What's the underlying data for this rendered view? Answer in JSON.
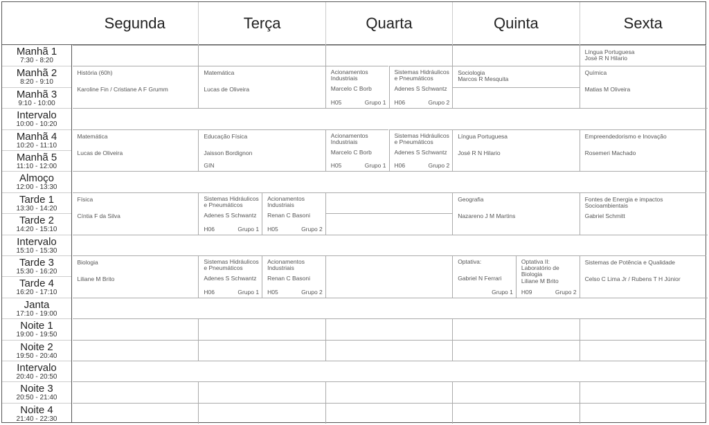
{
  "days": [
    "Segunda",
    "Terça",
    "Quarta",
    "Quinta",
    "Sexta"
  ],
  "slots": [
    {
      "name": "Manhã 1",
      "time": "7:30 - 8:20"
    },
    {
      "name": "Manhã 2",
      "time": "8:20 - 9:10"
    },
    {
      "name": "Manhã 3",
      "time": "9:10 - 10:00"
    },
    {
      "name": "Intervalo",
      "time": "10:00 - 10:20"
    },
    {
      "name": "Manhã 4",
      "time": "10:20 - 11:10"
    },
    {
      "name": "Manhã 5",
      "time": "11:10 - 12:00"
    },
    {
      "name": "Almoço",
      "time": "12:00 - 13:30"
    },
    {
      "name": "Tarde 1",
      "time": "13:30 - 14:20"
    },
    {
      "name": "Tarde 2",
      "time": "14:20 - 15:10"
    },
    {
      "name": "Intervalo",
      "time": "15:10 - 15:30"
    },
    {
      "name": "Tarde 3",
      "time": "15:30 - 16:20"
    },
    {
      "name": "Tarde 4",
      "time": "16:20 - 17:10"
    },
    {
      "name": "Janta",
      "time": "17:10 - 19:00"
    },
    {
      "name": "Noite 1",
      "time": "19:00 - 19:50"
    },
    {
      "name": "Noite 2",
      "time": "19:50 - 20:40"
    },
    {
      "name": "Intervalo",
      "time": "20:40 - 20:50"
    },
    {
      "name": "Noite 3",
      "time": "20:50 - 21:40"
    },
    {
      "name": "Noite 4",
      "time": "21:40 - 22:30"
    }
  ],
  "breaks": [
    3,
    6,
    9,
    12,
    15
  ],
  "classes": [
    {
      "day": 0,
      "row": 0,
      "span": 1
    },
    {
      "day": 1,
      "row": 0,
      "span": 1
    },
    {
      "day": 2,
      "row": 0,
      "span": 1
    },
    {
      "day": 3,
      "row": 0,
      "span": 1
    },
    {
      "day": 4,
      "row": 0,
      "span": 1,
      "style": "compact",
      "subject": "Língua Portuguesa",
      "teacher": "José R N Hilario"
    },
    {
      "day": 0,
      "row": 1,
      "span": 2,
      "subject": "História (60h)",
      "teacher": "Karoline Fin / Cristiane A F Grumm"
    },
    {
      "day": 1,
      "row": 1,
      "span": 2,
      "subject": "Matemática",
      "teacher": "Lucas de Oliveira"
    },
    {
      "day": 2,
      "row": 1,
      "span": 2,
      "half": 0,
      "subject": "Acionamentos Industriais",
      "teacher": "Marcelo C Borb",
      "room": "H05",
      "group": "Grupo 1"
    },
    {
      "day": 2,
      "row": 1,
      "span": 2,
      "half": 1,
      "subject": "Sistemas Hidráulicos e Pneumáticos",
      "teacher": "Adenes S Schwantz",
      "room": "H06",
      "group": "Grupo 2"
    },
    {
      "day": 3,
      "row": 1,
      "span": 1,
      "style": "compact",
      "subject": "Sociologia",
      "teacher": "Marcos R Mesquita"
    },
    {
      "day": 3,
      "row": 2,
      "span": 1
    },
    {
      "day": 4,
      "row": 1,
      "span": 2,
      "subject": "Química",
      "teacher": "Matias M Oliveira"
    },
    {
      "day": 0,
      "row": 4,
      "span": 2,
      "subject": "Matemática",
      "teacher": "Lucas de Oliveira"
    },
    {
      "day": 1,
      "row": 4,
      "span": 2,
      "subject": "Educação Física",
      "teacher": "Jaisson Bordignon",
      "room": "GIN"
    },
    {
      "day": 2,
      "row": 4,
      "span": 2,
      "half": 0,
      "subject": "Acionamentos Industriais",
      "teacher": "Marcelo C Borb",
      "room": "H05",
      "group": "Grupo 1"
    },
    {
      "day": 2,
      "row": 4,
      "span": 2,
      "half": 1,
      "subject": "Sistemas Hidráulicos e Pneumáticos",
      "teacher": "Adenes S Schwantz",
      "room": "H06",
      "group": "Grupo 2"
    },
    {
      "day": 3,
      "row": 4,
      "span": 2,
      "subject": "Língua Portuguesa",
      "teacher": "José R N Hilario"
    },
    {
      "day": 4,
      "row": 4,
      "span": 2,
      "subject": "Empreendedorismo e Inovação",
      "teacher": "Rosemeri Machado"
    },
    {
      "day": 0,
      "row": 7,
      "span": 2,
      "subject": "Física",
      "teacher": "Cíntia F da Silva"
    },
    {
      "day": 1,
      "row": 7,
      "span": 2,
      "half": 0,
      "subject": "Sistemas Hidráulicos e Pneumáticos",
      "teacher": "Adenes S Schwantz",
      "room": "H06",
      "group": "Grupo 1"
    },
    {
      "day": 1,
      "row": 7,
      "span": 2,
      "half": 1,
      "subject": "Acionamentos Industriais",
      "teacher": "Renan C Basoni",
      "room": "H05",
      "group": "Grupo 2"
    },
    {
      "day": 2,
      "row": 7,
      "span": 1
    },
    {
      "day": 2,
      "row": 8,
      "span": 1
    },
    {
      "day": 3,
      "row": 7,
      "span": 2,
      "subject": "Geografia",
      "teacher": "Nazareno J M Martins"
    },
    {
      "day": 4,
      "row": 7,
      "span": 2,
      "subject": "Fontes de Energia e impactos Socioambientais",
      "teacher": "Gabriel Schmitt"
    },
    {
      "day": 0,
      "row": 10,
      "span": 2,
      "subject": "Biologia",
      "teacher": "Liliane M Brito"
    },
    {
      "day": 1,
      "row": 10,
      "span": 2,
      "half": 0,
      "subject": "Sistemas Hidráulicos e Pneumáticos",
      "teacher": "Adenes S Schwantz",
      "room": "H06",
      "group": "Grupo 1"
    },
    {
      "day": 1,
      "row": 10,
      "span": 2,
      "half": 1,
      "subject": "Acionamentos Industriais",
      "teacher": "Renan C Basoni",
      "room": "H05",
      "group": "Grupo 2"
    },
    {
      "day": 2,
      "row": 10,
      "span": 2
    },
    {
      "day": 3,
      "row": 10,
      "span": 2,
      "half": 0,
      "subject": "Optativa:",
      "teacher": "Gabriel N Ferrari",
      "group": "Grupo 1"
    },
    {
      "day": 3,
      "row": 10,
      "span": 2,
      "half": 1,
      "subject": "Optativa II: Laboratório de Biologia",
      "teacher": "Liliane M Brito",
      "room": "H09",
      "group": "Grupo 2"
    },
    {
      "day": 4,
      "row": 10,
      "span": 2,
      "subject": "Sistemas de Potência e Qualidade",
      "teacher": "Celso C Lima Jr / Rubens T H  Júnior"
    },
    {
      "day": 0,
      "row": 13,
      "span": 1
    },
    {
      "day": 1,
      "row": 13,
      "span": 1
    },
    {
      "day": 2,
      "row": 13,
      "span": 1
    },
    {
      "day": 3,
      "row": 13,
      "span": 1
    },
    {
      "day": 4,
      "row": 13,
      "span": 1
    },
    {
      "day": 0,
      "row": 14,
      "span": 1
    },
    {
      "day": 1,
      "row": 14,
      "span": 1
    },
    {
      "day": 2,
      "row": 14,
      "span": 1
    },
    {
      "day": 3,
      "row": 14,
      "span": 1
    },
    {
      "day": 4,
      "row": 14,
      "span": 1
    },
    {
      "day": 0,
      "row": 16,
      "span": 1
    },
    {
      "day": 1,
      "row": 16,
      "span": 1
    },
    {
      "day": 2,
      "row": 16,
      "span": 1
    },
    {
      "day": 3,
      "row": 16,
      "span": 1
    },
    {
      "day": 4,
      "row": 16,
      "span": 1
    },
    {
      "day": 0,
      "row": 17,
      "span": 1
    },
    {
      "day": 1,
      "row": 17,
      "span": 1
    },
    {
      "day": 2,
      "row": 17,
      "span": 1
    },
    {
      "day": 3,
      "row": 17,
      "span": 1
    },
    {
      "day": 4,
      "row": 17,
      "span": 1
    }
  ]
}
